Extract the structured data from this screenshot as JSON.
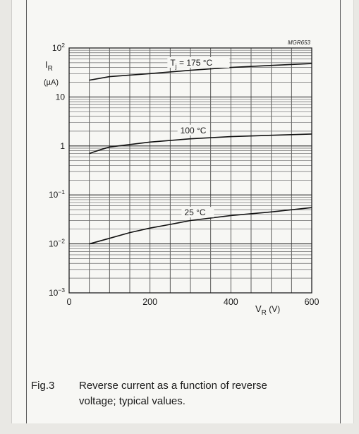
{
  "chart_data": {
    "type": "line",
    "figure_code": "MGR653",
    "xlabel": "V",
    "xlabel_sub": "R",
    "xlabel_unit": " (V)",
    "ylabel": "I",
    "ylabel_sub": "R",
    "ylabel_unit": "(µA)",
    "xlim": [
      0,
      600
    ],
    "ylim": [
      0.001,
      100
    ],
    "yscale": "log",
    "grid": true,
    "x_ticks": [
      "0",
      "200",
      "400",
      "600"
    ],
    "y_ticks": [
      {
        "base": "10",
        "exp": "2"
      },
      {
        "base": "10",
        "exp": ""
      },
      {
        "base": "1",
        "exp": ""
      },
      {
        "base": "10",
        "exp": "−1"
      },
      {
        "base": "10",
        "exp": "−2"
      },
      {
        "base": "10",
        "exp": "−3"
      }
    ],
    "series": [
      {
        "name": "Tj = 175 °C",
        "label_prefix": "T",
        "label_sub": "j",
        "label_suffix": " = 175 °C",
        "x": [
          50,
          100,
          200,
          300,
          400,
          500,
          600
        ],
        "y": [
          22,
          26,
          30,
          35,
          40,
          44,
          48
        ]
      },
      {
        "name": "100 °C",
        "label_prefix": "100 °C",
        "label_sub": "",
        "label_suffix": "",
        "x": [
          50,
          60,
          80,
          100,
          200,
          300,
          400,
          500,
          600
        ],
        "y": [
          0.7,
          0.75,
          0.85,
          0.95,
          1.2,
          1.4,
          1.55,
          1.65,
          1.75
        ]
      },
      {
        "name": "25 °C",
        "label_prefix": "25 °C",
        "label_sub": "",
        "label_suffix": "",
        "x": [
          50,
          100,
          150,
          200,
          250,
          300,
          400,
          500,
          600
        ],
        "y": [
          0.01,
          0.013,
          0.017,
          0.021,
          0.025,
          0.03,
          0.038,
          0.045,
          0.055
        ]
      }
    ]
  },
  "caption": {
    "number": "Fig.3",
    "line1": "Reverse current as a function of reverse",
    "line2": "voltage; typical values."
  }
}
